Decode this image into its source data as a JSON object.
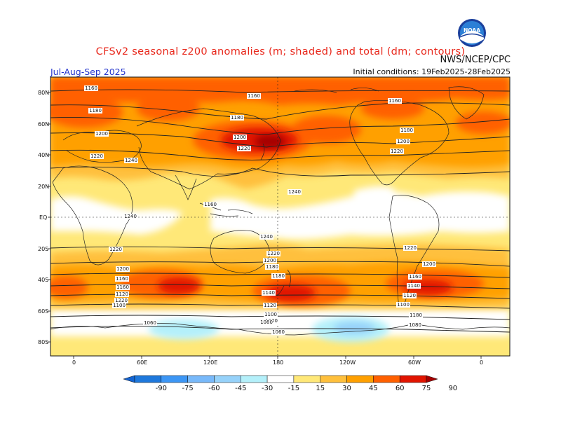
{
  "header": {
    "title": "CFSv2 seasonal z200 anomalies (m; shaded) and total (dm; contours)",
    "agency": "NWS/NCEP/CPC",
    "season": "Jul-Aug-Sep 2025",
    "initial_conditions": "Initial conditions: 19Feb2025-28Feb2025",
    "logo_text": "NOAA"
  },
  "map": {
    "projection": "cylindrical equidistant",
    "lat_labels": [
      "80N",
      "60N",
      "40N",
      "20N",
      "EQ",
      "20S",
      "40S",
      "60S",
      "80S"
    ],
    "lon_labels": [
      "0",
      "60E",
      "120E",
      "180",
      "120W",
      "60W",
      "0"
    ]
  },
  "contour_labels": [
    "1160",
    "1160",
    "1160",
    "1180",
    "1180",
    "1200",
    "1200",
    "1220",
    "1220",
    "1240",
    "1160",
    "1180",
    "1200",
    "1220",
    "1240",
    "1240",
    "1240",
    "1220",
    "1220",
    "1200",
    "1180",
    "1160",
    "1140",
    "1120",
    "1100",
    "1220",
    "1200",
    "1180",
    "1160",
    "1140",
    "1120",
    "1100",
    "1080",
    "1060",
    "1220",
    "1200",
    "1180",
    "1160",
    "1140",
    "1120",
    "1100",
    "1080",
    "1060",
    "1080"
  ],
  "colorbar": {
    "levels": [
      "-90",
      "-75",
      "-60",
      "-45",
      "-30",
      "-15",
      "15",
      "30",
      "45",
      "60",
      "75",
      "90"
    ],
    "colors": [
      "#1464d2",
      "#1e78dc",
      "#3c96f5",
      "#78b9fa",
      "#96d2fa",
      "#b4f0fa",
      "#ffffff",
      "#ffe878",
      "#ffc03c",
      "#ffa000",
      "#ff6000",
      "#e11400",
      "#a50000"
    ]
  }
}
